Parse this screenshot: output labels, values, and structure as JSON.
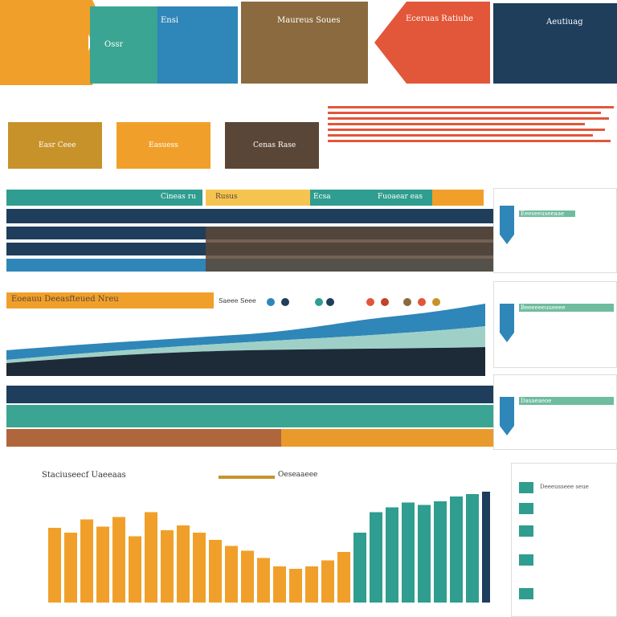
{
  "colors": {
    "orange": "#f0a02a",
    "teal": "#2f9d8f",
    "blue": "#2f86b8",
    "brown": "#8a6a3e",
    "red": "#e2563a",
    "navy": "#1e3e5c",
    "darkbrown": "#5a4636",
    "mustard": "#c8922a"
  },
  "header": {
    "banner_1": "Ossr",
    "banner_2": "Ensi",
    "banner_3": "Maureus Soues",
    "banner_4": "Eceruas Ratiuhe",
    "banner_5": "Aeutiuag"
  },
  "cards": {
    "card_1": "Easr Ceee",
    "card_2": "Easuess",
    "card_3": "Cenas Rase"
  },
  "ribbon": {
    "label_1": "Cineas ru",
    "label_2": "Rusus",
    "label_3": "Ecsa",
    "label_4": "Fuoaear eas"
  },
  "wave": {
    "title": "Eoeauu Deeasfteued Nreu",
    "small": "Saeee Seee"
  },
  "bar_chart": {
    "title": "Staciuseecf Uaeeaas",
    "legend": "Oeseaaeee",
    "values": [
      62,
      58,
      69,
      63,
      71,
      55,
      75,
      60,
      64,
      58,
      52,
      47,
      43,
      37,
      30,
      28,
      30,
      35,
      42,
      58,
      75,
      79,
      83,
      81,
      84,
      88,
      90,
      92
    ]
  },
  "sidebar": {
    "panel_1": "Eeeseeuseeaae",
    "panel_2": "Beeeeeeuueeee",
    "panel_3": "Dasaeaeoe",
    "panel_4": "Deeeusseee seue"
  }
}
